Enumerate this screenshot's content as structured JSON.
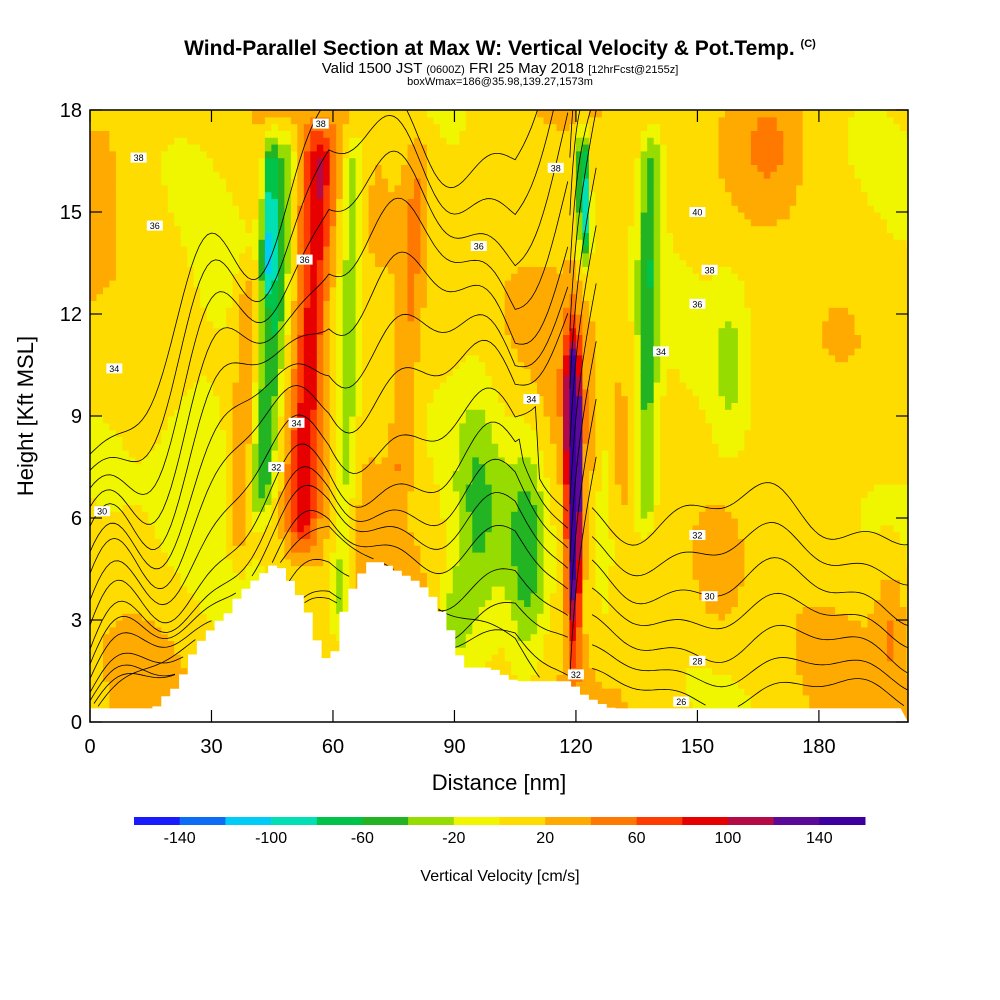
{
  "header": {
    "title": "Wind-Parallel Section at Max W: Vertical Velocity & Pot.Temp.",
    "copyright": "(C)",
    "valid_prefix": "Valid 1500 JST",
    "valid_utc": "(0600Z)",
    "valid_date": "FRI 25 May 2018",
    "forecast": "[12hrFcst@2155z]",
    "boxline": "boxWmax=186@35.98,139.27,1573m"
  },
  "chart_data": {
    "type": "heatmap",
    "xlabel": "Distance [nm]",
    "ylabel": "Height [Kft MSL]",
    "xlim": [
      0,
      202
    ],
    "ylim": [
      0,
      18
    ],
    "x_ticks": [
      "0",
      "30",
      "60",
      "90",
      "120",
      "150",
      "180"
    ],
    "y_ticks": [
      "0",
      "3",
      "6",
      "9",
      "12",
      "15",
      "18"
    ],
    "colorbar": {
      "label": "Vertical Velocity [cm/s]",
      "ticks": [
        "-140",
        "-100",
        "-60",
        "-20",
        "20",
        "60",
        "100",
        "140"
      ],
      "bins": [
        -160,
        -140,
        -120,
        -100,
        -80,
        -60,
        -40,
        -20,
        0,
        20,
        40,
        60,
        80,
        100,
        120,
        140,
        160
      ],
      "colors": [
        "#1a1aff",
        "#0c6cf5",
        "#00ccf7",
        "#00e0b4",
        "#00c44a",
        "#22b422",
        "#96dc00",
        "#f0f500",
        "#ffdc00",
        "#ffaa00",
        "#ff7800",
        "#ff3c00",
        "#e60000",
        "#b40a46",
        "#5a0a96",
        "#3c00a0"
      ]
    },
    "features": [
      {
        "name": "updraft",
        "x": 120,
        "y_bottom": 1,
        "y_top": 12,
        "max_cm_s": 160
      },
      {
        "name": "downdraft",
        "x": 44,
        "y_bottom": 5,
        "y_top": 18,
        "min_cm_s": -100
      },
      {
        "name": "downdraft",
        "x": 122,
        "y_bottom": 13,
        "y_top": 18,
        "min_cm_s": -100
      }
    ],
    "terrain_nm_kft": [
      [
        0,
        0.4
      ],
      [
        15,
        0.4
      ],
      [
        17,
        0.7
      ],
      [
        20,
        1.0
      ],
      [
        22,
        1.4
      ],
      [
        25,
        2.2
      ],
      [
        28,
        2.6
      ],
      [
        30,
        2.9
      ],
      [
        33,
        3.2
      ],
      [
        35,
        3.6
      ],
      [
        38,
        4.0
      ],
      [
        41,
        4.3
      ],
      [
        44,
        4.6
      ],
      [
        47,
        4.5
      ],
      [
        49,
        4.0
      ],
      [
        52,
        3.5
      ],
      [
        54,
        2.8
      ],
      [
        56,
        2.0
      ],
      [
        58,
        1.8
      ],
      [
        60,
        2.2
      ],
      [
        62,
        3.5
      ],
      [
        65,
        4.2
      ],
      [
        68,
        4.7
      ],
      [
        71,
        4.7
      ],
      [
        74,
        4.5
      ],
      [
        77,
        4.3
      ],
      [
        80,
        4.1
      ],
      [
        83,
        3.8
      ],
      [
        86,
        3.2
      ],
      [
        88,
        2.7
      ],
      [
        90,
        2.0
      ],
      [
        92,
        1.6
      ],
      [
        95,
        1.6
      ],
      [
        98,
        1.6
      ],
      [
        101,
        1.4
      ],
      [
        104,
        1.2
      ],
      [
        107,
        1.2
      ],
      [
        110,
        1.2
      ],
      [
        113,
        1.2
      ],
      [
        116,
        1.2
      ],
      [
        118,
        1.2
      ],
      [
        119,
        1.0
      ],
      [
        121,
        0.8
      ],
      [
        124,
        0.6
      ],
      [
        128,
        0.4
      ],
      [
        202,
        0.4
      ]
    ],
    "isentropes": [
      {
        "level": "26",
        "label_at": [
          146,
          0.6
        ]
      },
      {
        "level": "28",
        "label_at": [
          150,
          1.8
        ]
      },
      {
        "level": "30",
        "label_at": [
          3,
          6.2
        ]
      },
      {
        "level": "30",
        "label_at": [
          153,
          3.7
        ]
      },
      {
        "level": "32",
        "label_at": [
          46,
          7.5
        ]
      },
      {
        "level": "32",
        "label_at": [
          150,
          5.5
        ]
      },
      {
        "level": "32",
        "label_at": [
          120,
          1.4
        ]
      },
      {
        "level": "34",
        "label_at": [
          6,
          10.4
        ]
      },
      {
        "level": "34",
        "label_at": [
          51,
          8.8
        ]
      },
      {
        "level": "34",
        "label_at": [
          109,
          9.5
        ]
      },
      {
        "level": "34",
        "label_at": [
          141,
          10.9
        ]
      },
      {
        "level": "36",
        "label_at": [
          16,
          14.6
        ]
      },
      {
        "level": "36",
        "label_at": [
          53,
          13.6
        ]
      },
      {
        "level": "36",
        "label_at": [
          96,
          14.0
        ]
      },
      {
        "level": "36",
        "label_at": [
          150,
          12.3
        ]
      },
      {
        "level": "38",
        "label_at": [
          12,
          16.6
        ]
      },
      {
        "level": "38",
        "label_at": [
          57,
          17.6
        ]
      },
      {
        "level": "38",
        "label_at": [
          115,
          16.3
        ]
      },
      {
        "level": "38",
        "label_at": [
          153,
          13.3
        ]
      },
      {
        "level": "40",
        "label_at": [
          150,
          15.0
        ]
      }
    ]
  }
}
